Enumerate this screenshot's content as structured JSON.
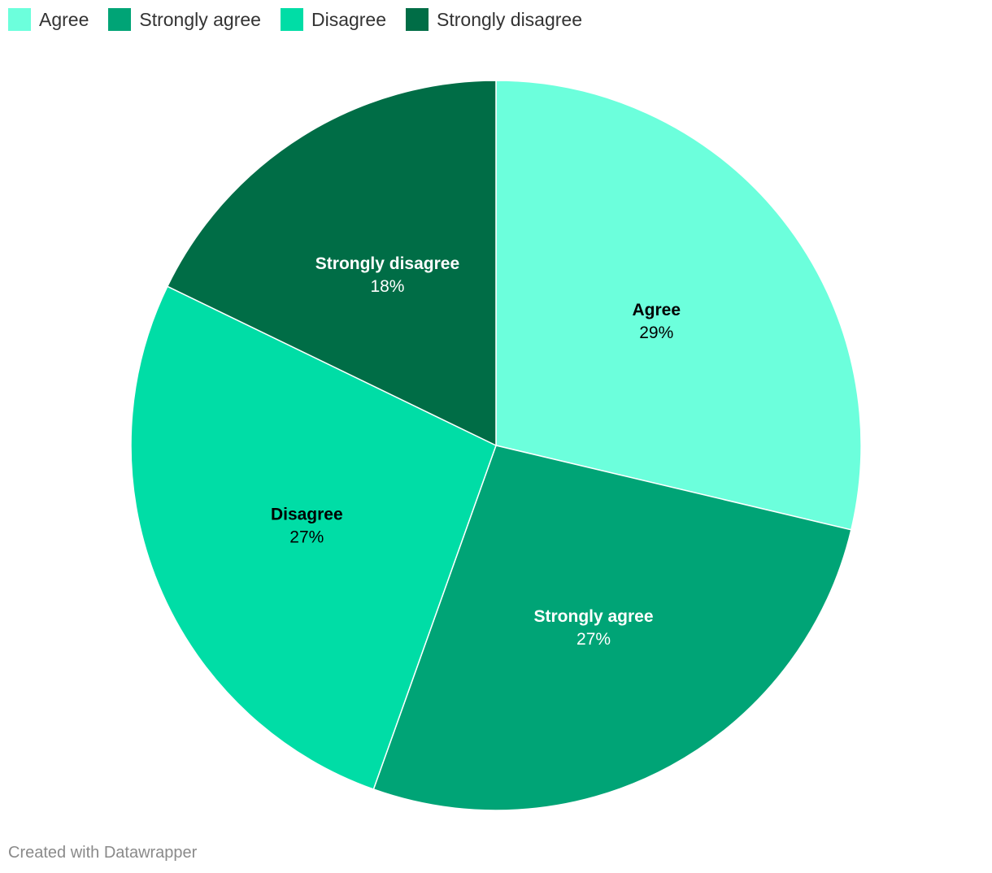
{
  "chart_data": {
    "type": "pie",
    "title": "",
    "slices": [
      {
        "label": "Agree",
        "value": 29,
        "display": "29%",
        "color": "#6cffdc",
        "text_color": "#000000"
      },
      {
        "label": "Strongly agree",
        "value": 27,
        "display": "27%",
        "color": "#00a476",
        "text_color": "#ffffff"
      },
      {
        "label": "Disagree",
        "value": 27,
        "display": "27%",
        "color": "#00dda6",
        "text_color": "#000000"
      },
      {
        "label": "Strongly disagree",
        "value": 18,
        "display": "18%",
        "color": "#006d46",
        "text_color": "#ffffff"
      }
    ],
    "legend": {
      "position": "top-left",
      "items": [
        "Agree",
        "Strongly agree",
        "Disagree",
        "Strongly disagree"
      ]
    }
  },
  "footer": {
    "credit": "Created with Datawrapper"
  }
}
